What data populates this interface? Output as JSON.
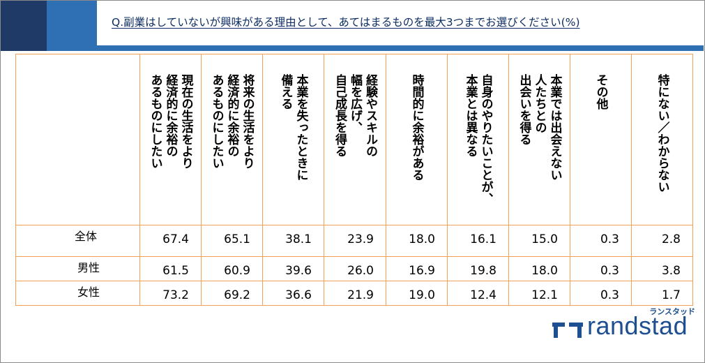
{
  "title": "Q.副業はしていないが興味がある理由として、あてはまるものを最大3つまでお選びください(%)",
  "chart_data": {
    "type": "table",
    "columns": [
      "現在の生活をより経済的に余裕のあるものにしたい",
      "将来の生活をより経済的に余裕のあるものにしたい",
      "本業を失ったときに備える",
      "経験やスキルの幅を広げ、自己成長を得る",
      "時間的に余裕がある",
      "自身のやりたいことが、本業とは異なる",
      "本業では出会えない人たちとの出会いを得る",
      "その他",
      "特にない/わからない"
    ],
    "column_lines": [
      [
        "現在の生活をより",
        "経済的に余裕の",
        "あるものにしたい"
      ],
      [
        "将来の生活をより",
        "経済的に余裕の",
        "あるものにしたい"
      ],
      [
        "本業を失ったときに",
        "備える"
      ],
      [
        "経験やスキルの",
        "幅を広げ、",
        "自己成長を得る"
      ],
      [
        "時間的に余裕がある"
      ],
      [
        "自身のやりたいことが、",
        "本業とは異なる"
      ],
      [
        "本業では出会えない",
        "人たちとの",
        "出会いを得る"
      ],
      [
        "その他"
      ],
      [
        "特にない／わからない"
      ]
    ],
    "rows": [
      {
        "label": "全体",
        "values": [
          "67.4",
          "65.1",
          "38.1",
          "23.9",
          "18.0",
          "16.1",
          "15.0",
          "0.3",
          "2.8"
        ]
      },
      {
        "label": "男性",
        "values": [
          "61.5",
          "60.9",
          "39.6",
          "26.0",
          "16.9",
          "19.8",
          "18.0",
          "0.3",
          "3.8"
        ]
      },
      {
        "label": "女性",
        "values": [
          "73.2",
          "69.2",
          "36.6",
          "21.9",
          "19.0",
          "12.4",
          "12.1",
          "0.3",
          "1.7"
        ]
      }
    ]
  },
  "logo": {
    "kana": "ランスタッド",
    "word": "randstad"
  },
  "colors": {
    "header_dark": "#1f3a66",
    "header_blue": "#2f6fb3",
    "grid_orange": "#f2a055",
    "title": "#0d2e63",
    "logo": "#1d4f91"
  }
}
